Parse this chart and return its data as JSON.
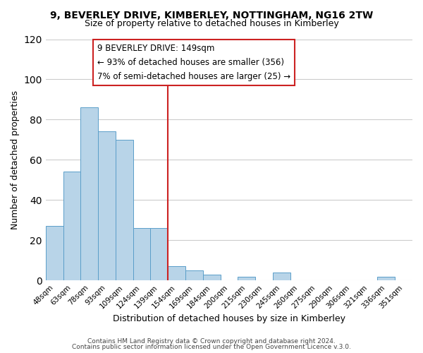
{
  "title": "9, BEVERLEY DRIVE, KIMBERLEY, NOTTINGHAM, NG16 2TW",
  "subtitle": "Size of property relative to detached houses in Kimberley",
  "xlabel": "Distribution of detached houses by size in Kimberley",
  "ylabel": "Number of detached properties",
  "footnote1": "Contains HM Land Registry data © Crown copyright and database right 2024.",
  "footnote2": "Contains public sector information licensed under the Open Government Licence v.3.0.",
  "bar_labels": [
    "48sqm",
    "63sqm",
    "78sqm",
    "93sqm",
    "109sqm",
    "124sqm",
    "139sqm",
    "154sqm",
    "169sqm",
    "184sqm",
    "200sqm",
    "215sqm",
    "230sqm",
    "245sqm",
    "260sqm",
    "275sqm",
    "290sqm",
    "306sqm",
    "321sqm",
    "336sqm",
    "351sqm"
  ],
  "bar_values": [
    27,
    54,
    86,
    74,
    70,
    26,
    26,
    7,
    5,
    3,
    0,
    2,
    0,
    4,
    0,
    0,
    0,
    0,
    0,
    2,
    0
  ],
  "bar_color": "#b8d4e8",
  "bar_edge_color": "#5a9ec9",
  "vline_bar_index": 7,
  "vline_color": "#cc2222",
  "annotation_title": "9 BEVERLEY DRIVE: 149sqm",
  "annotation_line1": "← 93% of detached houses are smaller (356)",
  "annotation_line2": "7% of semi-detached houses are larger (25) →",
  "annotation_box_color": "#ffffff",
  "annotation_box_edge": "#cc2222",
  "ylim": [
    0,
    120
  ],
  "yticks": [
    0,
    20,
    40,
    60,
    80,
    100,
    120
  ],
  "background_color": "#ffffff",
  "grid_color": "#cccccc"
}
